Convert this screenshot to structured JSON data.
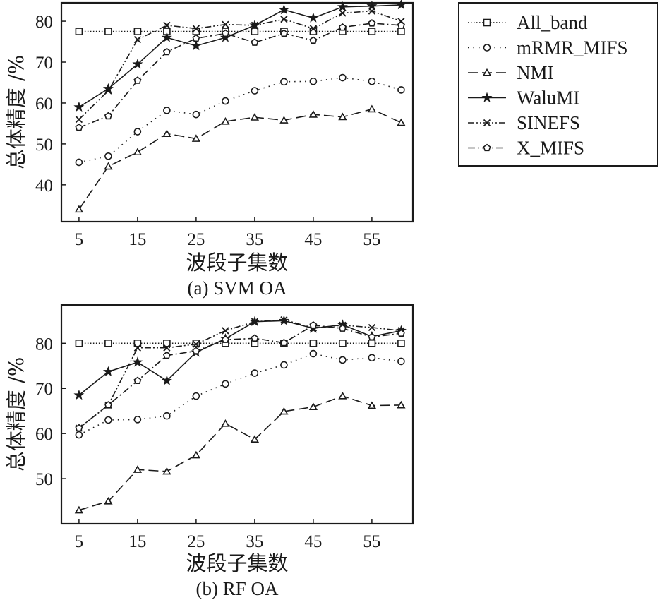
{
  "legend": {
    "entries": [
      {
        "name": "All_band",
        "marker": "square",
        "dash": "1.5 2.5"
      },
      {
        "name": "mRMR_MIFS",
        "marker": "circle",
        "dash": "1.5 6"
      },
      {
        "name": "NMI",
        "marker": "triangle",
        "dash": "14 6"
      },
      {
        "name": "WaluMI",
        "marker": "star",
        "dash": ""
      },
      {
        "name": "SINEFS",
        "marker": "x",
        "dash": "9 3 2 3 2 3"
      },
      {
        "name": "X_MIFS",
        "marker": "pentagon",
        "dash": "10 4 2 4"
      }
    ]
  },
  "chart_data": [
    {
      "type": "line",
      "caption": "(a) SVM OA",
      "xlabel": "波段子集数",
      "ylabel": "总体精度 /%",
      "xlim": [
        2,
        62
      ],
      "ylim": [
        31,
        84.5
      ],
      "xticks": [
        5,
        15,
        25,
        35,
        45,
        55
      ],
      "yticks": [
        40,
        50,
        60,
        70,
        80
      ],
      "x": [
        5,
        10,
        15,
        20,
        25,
        30,
        35,
        40,
        45,
        50,
        55,
        60
      ],
      "series": [
        {
          "name": "All_band",
          "values": [
            77.5,
            77.5,
            77.5,
            77.5,
            77.5,
            77.5,
            77.5,
            77.5,
            77.5,
            77.5,
            77.5,
            77.5
          ]
        },
        {
          "name": "mRMR_MIFS",
          "values": [
            45.5,
            47,
            53,
            58.2,
            57.2,
            60.5,
            63,
            65.2,
            65.3,
            66.2,
            65.3,
            63.2
          ]
        },
        {
          "name": "NMI",
          "values": [
            34,
            44.5,
            48,
            52.5,
            51.3,
            55.5,
            56.5,
            55.8,
            57.2,
            56.6,
            58.5,
            55.2
          ]
        },
        {
          "name": "WaluMI",
          "values": [
            59,
            63.5,
            69.5,
            76,
            74,
            76,
            79,
            82.8,
            80.8,
            83.5,
            83.7,
            84
          ]
        },
        {
          "name": "SINEFS",
          "values": [
            56,
            63,
            75.5,
            79,
            78.2,
            79.2,
            79,
            80.5,
            78.2,
            82,
            82.5,
            80
          ]
        },
        {
          "name": "X_MIFS",
          "values": [
            54,
            56.8,
            65.5,
            72.5,
            75.8,
            77,
            74.8,
            77,
            75.3,
            78.5,
            79.5,
            79
          ]
        }
      ]
    },
    {
      "type": "line",
      "caption": "(b) RF OA",
      "xlabel": "波段子集数",
      "ylabel": "总体精度 /%",
      "xlim": [
        2,
        62
      ],
      "ylim": [
        40,
        88.5
      ],
      "xticks": [
        5,
        15,
        25,
        35,
        45,
        55
      ],
      "yticks": [
        50,
        60,
        70,
        80
      ],
      "x": [
        5,
        10,
        15,
        20,
        25,
        30,
        35,
        40,
        45,
        50,
        55,
        60
      ],
      "series": [
        {
          "name": "All_band",
          "values": [
            80,
            80,
            80,
            80,
            80,
            80,
            80,
            80,
            80,
            80,
            80,
            80
          ]
        },
        {
          "name": "mRMR_MIFS",
          "values": [
            59.7,
            63,
            63.1,
            63.9,
            68.3,
            71,
            73.4,
            75.2,
            77.7,
            76.3,
            76.8,
            76
          ]
        },
        {
          "name": "NMI",
          "values": [
            43,
            45,
            52,
            51.6,
            55.2,
            62.2,
            58.7,
            64.9,
            65.9,
            68.3,
            66.2,
            66.3
          ]
        },
        {
          "name": "WaluMI",
          "values": [
            68.5,
            73.7,
            75.8,
            71.7,
            78,
            81,
            84.8,
            85,
            83.3,
            84.1,
            81.5,
            82.8
          ]
        },
        {
          "name": "SINEFS",
          "values": [
            61.2,
            66.3,
            79,
            79,
            79.8,
            82.8,
            84.8,
            85.2,
            83.4,
            84,
            83.5,
            82.8
          ]
        },
        {
          "name": "X_MIFS",
          "values": [
            61.2,
            66.3,
            71.7,
            77.3,
            78.3,
            80.8,
            81.1,
            80.1,
            84,
            83.3,
            81.4,
            82.2
          ]
        }
      ]
    }
  ]
}
